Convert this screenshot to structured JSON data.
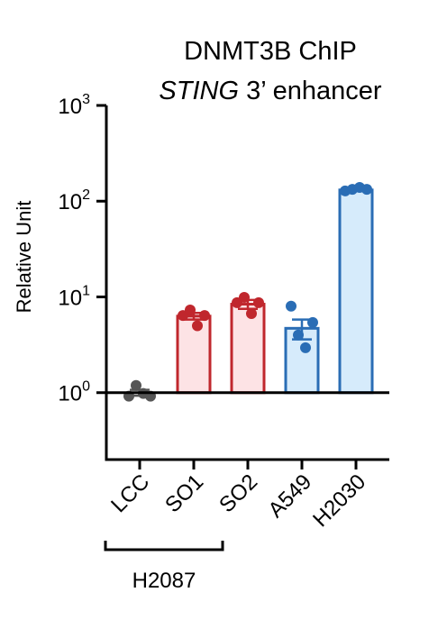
{
  "chart_data": {
    "type": "bar",
    "title": "DNMT3B ChIP",
    "subtitle": [
      {
        "text": "STING",
        "italic": true
      },
      {
        "text": " 3’ enhancer",
        "italic": false
      }
    ],
    "y_label": "Relative Unit",
    "yscale": "log",
    "ylim": [
      0.2,
      1000
    ],
    "yticks": [
      {
        "value": 1,
        "label": "10",
        "exponent": "0"
      },
      {
        "value": 10,
        "label": "10",
        "exponent": "1"
      },
      {
        "value": 100,
        "label": "10",
        "exponent": "2"
      },
      {
        "value": 1000,
        "label": "10",
        "exponent": "3"
      }
    ],
    "baseline": 1,
    "categories": [
      "LCC",
      "SO1",
      "SO2",
      "A549",
      "H2030"
    ],
    "values": [
      1.0,
      6.3,
      8.4,
      4.7,
      131
    ],
    "errors": [
      0.07,
      0.5,
      0.9,
      1.1,
      2.5
    ],
    "points": [
      [
        0.92,
        1.19,
        0.98,
        0.92
      ],
      [
        6.4,
        7.3,
        5.0,
        6.4
      ],
      [
        8.7,
        9.9,
        6.7,
        8.7
      ],
      [
        8.0,
        4.0,
        2.95,
        5.4
      ],
      [
        128,
        133,
        139,
        133
      ]
    ],
    "colors": [
      "#555555",
      "#c0272d",
      "#c0272d",
      "#2a6db5",
      "#2a6db5"
    ],
    "fill_colors": [
      "#e6e6e6",
      "#fde3e5",
      "#fde3e5",
      "#d6ebfb",
      "#d6ebfb"
    ],
    "group_label": "H2087",
    "group_members": [
      "LCC",
      "SO1",
      "SO2"
    ]
  }
}
